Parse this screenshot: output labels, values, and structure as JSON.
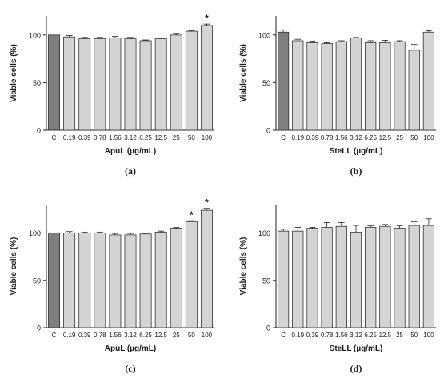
{
  "chart_data": [
    {
      "panel": "(a)",
      "type": "bar",
      "categories": [
        "C",
        "0.19",
        "0.39",
        "0.78",
        "1.56",
        "3.12",
        "6.25",
        "12.5",
        "25",
        "50",
        "100"
      ],
      "values": [
        100,
        98,
        96,
        96,
        97,
        96,
        94,
        96,
        100,
        104,
        110
      ],
      "errors": [
        0,
        1.5,
        1.5,
        1.5,
        1.5,
        1.5,
        0.8,
        0.8,
        1.8,
        0.8,
        1.5
      ],
      "highlight_first": true,
      "significant": [
        false,
        false,
        false,
        false,
        false,
        false,
        false,
        false,
        false,
        false,
        true
      ],
      "ylabel": "Viable cells (%)",
      "xlabel": "ApuL (µg/mL)",
      "ylim": [
        0,
        120
      ],
      "yticks": [
        0,
        50,
        100
      ]
    },
    {
      "panel": "(b)",
      "type": "bar",
      "categories": [
        "C",
        "0.19",
        "0.39",
        "0.78",
        "1.56",
        "3.12",
        "6.25",
        "12.5",
        "25",
        "50",
        "100"
      ],
      "values": [
        103,
        94,
        92,
        91,
        93,
        97,
        92,
        92,
        93,
        84,
        103
      ],
      "errors": [
        2.5,
        1.5,
        1.5,
        1,
        1,
        0.5,
        2,
        2.5,
        1,
        6,
        1.5
      ],
      "highlight_first": true,
      "significant": [
        false,
        false,
        false,
        false,
        false,
        false,
        false,
        false,
        false,
        false,
        false
      ],
      "ylabel": "Viable cells (%)",
      "xlabel": "SteLL (µg/mL)",
      "ylim": [
        0,
        120
      ],
      "yticks": [
        0,
        50,
        100
      ]
    },
    {
      "panel": "(c)",
      "type": "bar",
      "categories": [
        "C",
        "0.19",
        "0.39",
        "0.78",
        "1.56",
        "3.12",
        "6.25",
        "12.5",
        "25",
        "50",
        "100"
      ],
      "values": [
        100,
        100,
        100,
        100,
        98,
        98,
        99,
        101,
        105,
        112,
        124
      ],
      "errors": [
        0,
        1.5,
        1,
        1,
        1.5,
        1.5,
        0.8,
        1,
        0.8,
        1,
        2
      ],
      "highlight_first": true,
      "significant": [
        false,
        false,
        false,
        false,
        false,
        false,
        false,
        false,
        false,
        true,
        true
      ],
      "ylabel": "Viable cells (%)",
      "xlabel": "ApuL (µg/mL)",
      "ylim": [
        0,
        130
      ],
      "yticks": [
        0,
        50,
        100
      ]
    },
    {
      "panel": "(d)",
      "type": "bar",
      "categories": [
        "C",
        "0.19",
        "0.39",
        "0.78",
        "1.56",
        "3.12",
        "6.25",
        "12.5",
        "25",
        "50",
        "100"
      ],
      "values": [
        102,
        102,
        105,
        106,
        107,
        101,
        106,
        107,
        105,
        108,
        108
      ],
      "errors": [
        2,
        4,
        1,
        5,
        4,
        7,
        1.5,
        2,
        2.5,
        4,
        7
      ],
      "highlight_first": false,
      "significant": [
        false,
        false,
        false,
        false,
        false,
        false,
        false,
        false,
        false,
        false,
        false
      ],
      "ylabel": "Viable cells (%)",
      "xlabel": "SteLL (µg/mL)",
      "ylim": [
        0,
        130
      ],
      "yticks": [
        0,
        50,
        100
      ]
    }
  ],
  "colors": {
    "control_bar": "#7f7f7f",
    "bar": "#d4d4d4",
    "bar_stroke": "#333333",
    "axis": "#222222"
  },
  "significance_mark": "*"
}
